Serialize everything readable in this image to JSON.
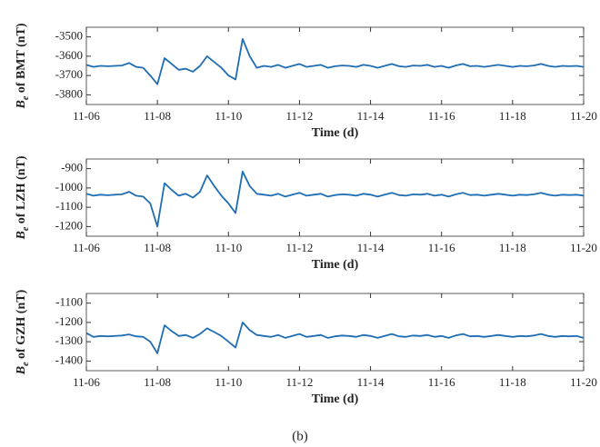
{
  "chart_data": [
    {
      "type": "line",
      "ylabel_symbol": "B",
      "ylabel_subscript": "e",
      "ylabel": " of BMT (nT)",
      "xlabel": "Time (d)",
      "color": "#1f6db3",
      "xlim": [
        6,
        20
      ],
      "xticks": [
        {
          "value": 6,
          "label": "11-06"
        },
        {
          "value": 8,
          "label": "11-08"
        },
        {
          "value": 10,
          "label": "11-10"
        },
        {
          "value": 12,
          "label": "11-12"
        },
        {
          "value": 14,
          "label": "11-14"
        },
        {
          "value": 16,
          "label": "11-16"
        },
        {
          "value": 18,
          "label": "11-18"
        },
        {
          "value": 20,
          "label": "11-20"
        }
      ],
      "ylim": [
        -3850,
        -3450
      ],
      "yticks": [
        -3800,
        -3700,
        -3600,
        -3500
      ],
      "x": [
        6,
        6.2,
        6.4,
        6.6,
        6.8,
        7,
        7.2,
        7.4,
        7.6,
        7.8,
        8,
        8.2,
        8.4,
        8.6,
        8.8,
        9,
        9.2,
        9.4,
        9.6,
        9.8,
        10,
        10.2,
        10.4,
        10.6,
        10.8,
        11,
        11.2,
        11.4,
        11.6,
        11.8,
        12,
        12.2,
        12.4,
        12.6,
        12.8,
        13,
        13.2,
        13.4,
        13.6,
        13.8,
        14,
        14.2,
        14.4,
        14.6,
        14.8,
        15,
        15.2,
        15.4,
        15.6,
        15.8,
        16,
        16.2,
        16.4,
        16.6,
        16.8,
        17,
        17.2,
        17.4,
        17.6,
        17.8,
        18,
        18.2,
        18.4,
        18.6,
        18.8,
        19,
        19.2,
        19.4,
        19.6,
        19.8,
        20
      ],
      "values": [
        -3645,
        -3655,
        -3650,
        -3652,
        -3650,
        -3648,
        -3635,
        -3655,
        -3660,
        -3700,
        -3745,
        -3610,
        -3640,
        -3670,
        -3665,
        -3680,
        -3650,
        -3600,
        -3630,
        -3660,
        -3700,
        -3720,
        -3510,
        -3600,
        -3660,
        -3650,
        -3655,
        -3645,
        -3660,
        -3650,
        -3640,
        -3655,
        -3650,
        -3645,
        -3660,
        -3652,
        -3648,
        -3650,
        -3655,
        -3645,
        -3650,
        -3660,
        -3650,
        -3640,
        -3652,
        -3655,
        -3648,
        -3650,
        -3645,
        -3655,
        -3650,
        -3660,
        -3648,
        -3640,
        -3652,
        -3650,
        -3655,
        -3650,
        -3645,
        -3650,
        -3655,
        -3650,
        -3652,
        -3648,
        -3640,
        -3650,
        -3655,
        -3650,
        -3652,
        -3650,
        -3655
      ]
    },
    {
      "type": "line",
      "ylabel_symbol": "B",
      "ylabel_subscript": "e",
      "ylabel": " of LZH (nT)",
      "xlabel": "Time (d)",
      "color": "#1f6db3",
      "xlim": [
        6,
        20
      ],
      "xticks": [
        {
          "value": 6,
          "label": "11-06"
        },
        {
          "value": 8,
          "label": "11-08"
        },
        {
          "value": 10,
          "label": "11-10"
        },
        {
          "value": 12,
          "label": "11-12"
        },
        {
          "value": 14,
          "label": "11-14"
        },
        {
          "value": 16,
          "label": "11-16"
        },
        {
          "value": 18,
          "label": "11-18"
        },
        {
          "value": 20,
          "label": "11-20"
        }
      ],
      "ylim": [
        -1250,
        -850
      ],
      "yticks": [
        -1200,
        -1100,
        -1000,
        -900
      ],
      "x": [
        6,
        6.2,
        6.4,
        6.6,
        6.8,
        7,
        7.2,
        7.4,
        7.6,
        7.8,
        8,
        8.2,
        8.4,
        8.6,
        8.8,
        9,
        9.2,
        9.4,
        9.6,
        9.8,
        10,
        10.2,
        10.4,
        10.6,
        10.8,
        11,
        11.2,
        11.4,
        11.6,
        11.8,
        12,
        12.2,
        12.4,
        12.6,
        12.8,
        13,
        13.2,
        13.4,
        13.6,
        13.8,
        14,
        14.2,
        14.4,
        14.6,
        14.8,
        15,
        15.2,
        15.4,
        15.6,
        15.8,
        16,
        16.2,
        16.4,
        16.6,
        16.8,
        17,
        17.2,
        17.4,
        17.6,
        17.8,
        18,
        18.2,
        18.4,
        18.6,
        18.8,
        19,
        19.2,
        19.4,
        19.6,
        19.8,
        20
      ],
      "values": [
        -1030,
        -1040,
        -1035,
        -1038,
        -1035,
        -1033,
        -1020,
        -1040,
        -1045,
        -1080,
        -1200,
        -975,
        -1010,
        -1040,
        -1030,
        -1050,
        -1020,
        -935,
        -990,
        -1040,
        -1080,
        -1130,
        -915,
        -990,
        -1030,
        -1035,
        -1040,
        -1030,
        -1045,
        -1035,
        -1025,
        -1040,
        -1035,
        -1030,
        -1045,
        -1037,
        -1033,
        -1035,
        -1040,
        -1030,
        -1035,
        -1045,
        -1035,
        -1025,
        -1037,
        -1040,
        -1033,
        -1035,
        -1030,
        -1040,
        -1035,
        -1045,
        -1033,
        -1025,
        -1037,
        -1035,
        -1040,
        -1035,
        -1030,
        -1035,
        -1040,
        -1035,
        -1037,
        -1033,
        -1025,
        -1035,
        -1040,
        -1035,
        -1037,
        -1035,
        -1040
      ]
    },
    {
      "type": "line",
      "ylabel_symbol": "B",
      "ylabel_subscript": "e",
      "ylabel": " of GZH (nT)",
      "xlabel": "Time (d)",
      "color": "#1f6db3",
      "xlim": [
        6,
        20
      ],
      "xticks": [
        {
          "value": 6,
          "label": "11-06"
        },
        {
          "value": 8,
          "label": "11-08"
        },
        {
          "value": 10,
          "label": "11-10"
        },
        {
          "value": 12,
          "label": "11-12"
        },
        {
          "value": 14,
          "label": "11-14"
        },
        {
          "value": 16,
          "label": "11-16"
        },
        {
          "value": 18,
          "label": "11-18"
        },
        {
          "value": 20,
          "label": "11-20"
        }
      ],
      "ylim": [
        -1450,
        -1050
      ],
      "yticks": [
        -1400,
        -1300,
        -1200,
        -1100
      ],
      "x": [
        6,
        6.2,
        6.4,
        6.6,
        6.8,
        7,
        7.2,
        7.4,
        7.6,
        7.8,
        8,
        8.2,
        8.4,
        8.6,
        8.8,
        9,
        9.2,
        9.4,
        9.6,
        9.8,
        10,
        10.2,
        10.4,
        10.6,
        10.8,
        11,
        11.2,
        11.4,
        11.6,
        11.8,
        12,
        12.2,
        12.4,
        12.6,
        12.8,
        13,
        13.2,
        13.4,
        13.6,
        13.8,
        14,
        14.2,
        14.4,
        14.6,
        14.8,
        15,
        15.2,
        15.4,
        15.6,
        15.8,
        16,
        16.2,
        16.4,
        16.6,
        16.8,
        17,
        17.2,
        17.4,
        17.6,
        17.8,
        18,
        18.2,
        18.4,
        18.6,
        18.8,
        19,
        19.2,
        19.4,
        19.6,
        19.8,
        20
      ],
      "values": [
        -1255,
        -1275,
        -1270,
        -1272,
        -1270,
        -1268,
        -1262,
        -1272,
        -1275,
        -1300,
        -1360,
        -1215,
        -1245,
        -1270,
        -1265,
        -1280,
        -1260,
        -1230,
        -1250,
        -1270,
        -1300,
        -1330,
        -1200,
        -1240,
        -1265,
        -1270,
        -1275,
        -1265,
        -1280,
        -1270,
        -1260,
        -1275,
        -1270,
        -1265,
        -1280,
        -1272,
        -1268,
        -1270,
        -1275,
        -1265,
        -1270,
        -1280,
        -1270,
        -1260,
        -1272,
        -1275,
        -1268,
        -1270,
        -1265,
        -1275,
        -1270,
        -1280,
        -1268,
        -1260,
        -1272,
        -1270,
        -1275,
        -1270,
        -1265,
        -1270,
        -1275,
        -1270,
        -1272,
        -1268,
        -1260,
        -1270,
        -1275,
        -1270,
        -1272,
        -1270,
        -1280
      ]
    }
  ],
  "caption": "(b)"
}
